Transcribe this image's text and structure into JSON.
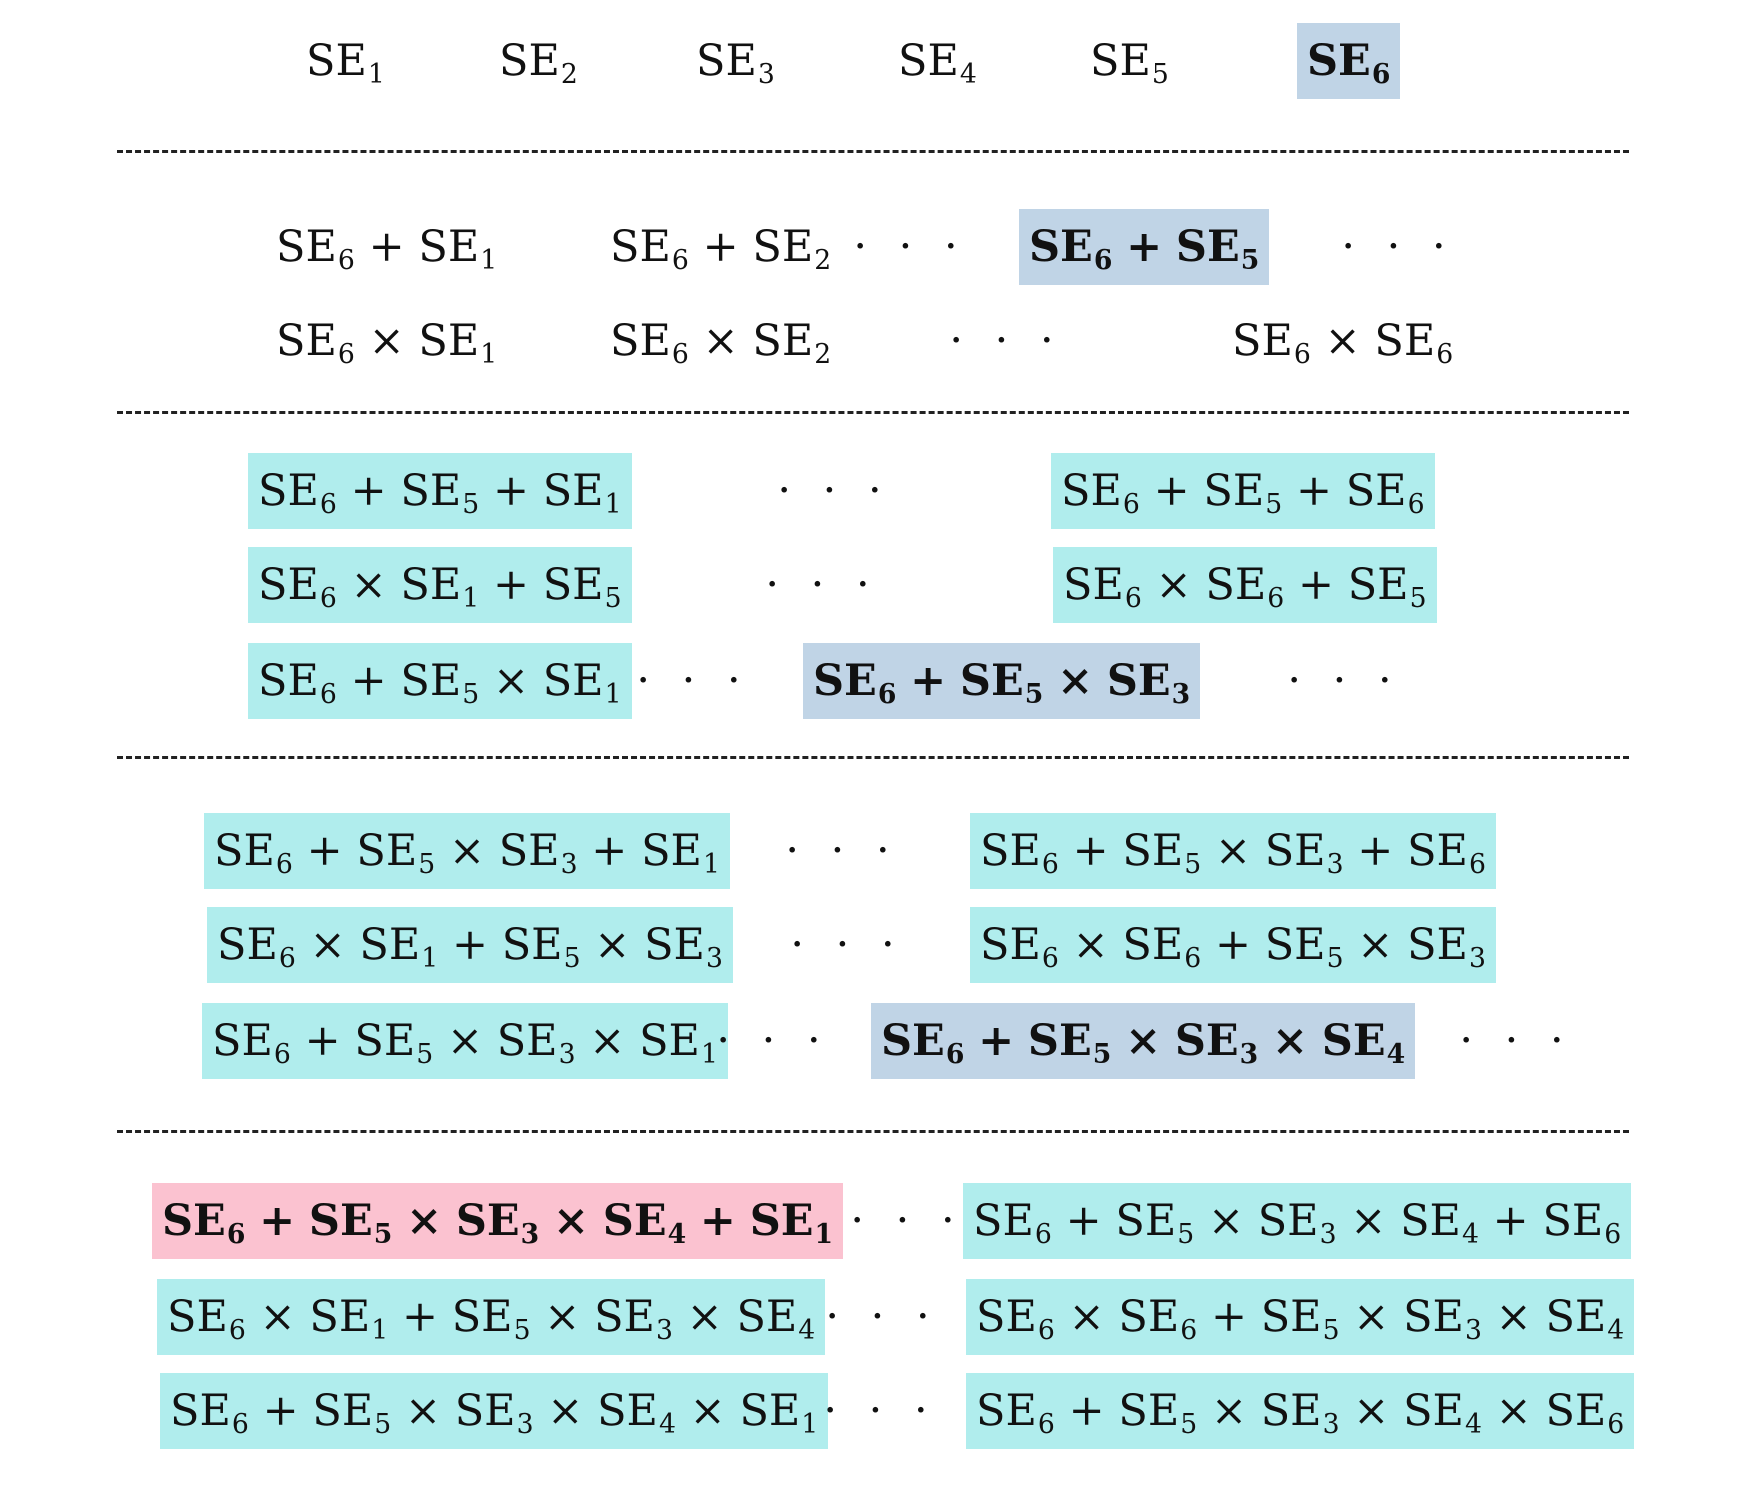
{
  "colors": {
    "highlight_blue": "#c0d4e6",
    "candidate_cyan": "#b0eded",
    "final_pink": "#fbc2d0"
  },
  "ellipsis": "· · ·",
  "stages": [
    {
      "rows": [
        {
          "items": [
            {
              "kind": "expr",
              "bold": false,
              "style": "plain",
              "terms": [
                {
                  "t": "SE",
                  "s": "1"
                }
              ]
            },
            {
              "kind": "expr",
              "bold": false,
              "style": "plain",
              "terms": [
                {
                  "t": "SE",
                  "s": "2"
                }
              ]
            },
            {
              "kind": "expr",
              "bold": false,
              "style": "plain",
              "terms": [
                {
                  "t": "SE",
                  "s": "3"
                }
              ]
            },
            {
              "kind": "expr",
              "bold": false,
              "style": "plain",
              "terms": [
                {
                  "t": "SE",
                  "s": "4"
                }
              ]
            },
            {
              "kind": "expr",
              "bold": false,
              "style": "plain",
              "terms": [
                {
                  "t": "SE",
                  "s": "5"
                }
              ]
            },
            {
              "kind": "expr",
              "bold": true,
              "style": "blue",
              "terms": [
                {
                  "t": "SE",
                  "s": "6"
                }
              ]
            }
          ]
        }
      ]
    },
    {
      "rows": [
        {
          "items": [
            {
              "kind": "expr",
              "bold": false,
              "style": "plain",
              "terms": [
                {
                  "t": "SE",
                  "s": "6"
                },
                {
                  "op": "+"
                },
                {
                  "t": "SE",
                  "s": "1"
                }
              ]
            },
            {
              "kind": "expr",
              "bold": false,
              "style": "plain",
              "terms": [
                {
                  "t": "SE",
                  "s": "6"
                },
                {
                  "op": "+"
                },
                {
                  "t": "SE",
                  "s": "2"
                }
              ]
            },
            {
              "kind": "dots"
            },
            {
              "kind": "expr",
              "bold": true,
              "style": "blue",
              "terms": [
                {
                  "t": "SE",
                  "s": "6"
                },
                {
                  "op": "+"
                },
                {
                  "t": "SE",
                  "s": "5"
                }
              ]
            },
            {
              "kind": "dots"
            }
          ]
        },
        {
          "items": [
            {
              "kind": "expr",
              "bold": false,
              "style": "plain",
              "terms": [
                {
                  "t": "SE",
                  "s": "6"
                },
                {
                  "op": "×"
                },
                {
                  "t": "SE",
                  "s": "1"
                }
              ]
            },
            {
              "kind": "expr",
              "bold": false,
              "style": "plain",
              "terms": [
                {
                  "t": "SE",
                  "s": "6"
                },
                {
                  "op": "×"
                },
                {
                  "t": "SE",
                  "s": "2"
                }
              ]
            },
            {
              "kind": "dots"
            },
            {
              "kind": "expr",
              "bold": false,
              "style": "plain",
              "terms": [
                {
                  "t": "SE",
                  "s": "6"
                },
                {
                  "op": "×"
                },
                {
                  "t": "SE",
                  "s": "6"
                }
              ]
            }
          ]
        }
      ]
    },
    {
      "rows": [
        {
          "items": [
            {
              "kind": "expr",
              "bold": false,
              "style": "cyan",
              "terms": [
                {
                  "t": "SE",
                  "s": "6"
                },
                {
                  "op": "+"
                },
                {
                  "t": "SE",
                  "s": "5"
                },
                {
                  "op": "+"
                },
                {
                  "t": "SE",
                  "s": "1"
                }
              ]
            },
            {
              "kind": "dots"
            },
            {
              "kind": "expr",
              "bold": false,
              "style": "cyan",
              "terms": [
                {
                  "t": "SE",
                  "s": "6"
                },
                {
                  "op": "+"
                },
                {
                  "t": "SE",
                  "s": "5"
                },
                {
                  "op": "+"
                },
                {
                  "t": "SE",
                  "s": "6"
                }
              ]
            }
          ]
        },
        {
          "items": [
            {
              "kind": "expr",
              "bold": false,
              "style": "cyan",
              "terms": [
                {
                  "t": "SE",
                  "s": "6"
                },
                {
                  "op": "×"
                },
                {
                  "t": "SE",
                  "s": "1"
                },
                {
                  "op": "+"
                },
                {
                  "t": "SE",
                  "s": "5"
                }
              ]
            },
            {
              "kind": "dots"
            },
            {
              "kind": "expr",
              "bold": false,
              "style": "cyan",
              "terms": [
                {
                  "t": "SE",
                  "s": "6"
                },
                {
                  "op": "×"
                },
                {
                  "t": "SE",
                  "s": "6"
                },
                {
                  "op": "+"
                },
                {
                  "t": "SE",
                  "s": "5"
                }
              ]
            }
          ]
        },
        {
          "items": [
            {
              "kind": "expr",
              "bold": false,
              "style": "cyan",
              "terms": [
                {
                  "t": "SE",
                  "s": "6"
                },
                {
                  "op": "+"
                },
                {
                  "t": "SE",
                  "s": "5"
                },
                {
                  "op": "×"
                },
                {
                  "t": "SE",
                  "s": "1"
                }
              ]
            },
            {
              "kind": "dots"
            },
            {
              "kind": "expr",
              "bold": true,
              "style": "blue",
              "terms": [
                {
                  "t": "SE",
                  "s": "6"
                },
                {
                  "op": "+"
                },
                {
                  "t": "SE",
                  "s": "5"
                },
                {
                  "op": "×"
                },
                {
                  "t": "SE",
                  "s": "3"
                }
              ]
            },
            {
              "kind": "dots"
            }
          ]
        }
      ]
    },
    {
      "rows": [
        {
          "items": [
            {
              "kind": "expr",
              "bold": false,
              "style": "cyan",
              "terms": [
                {
                  "t": "SE",
                  "s": "6"
                },
                {
                  "op": "+"
                },
                {
                  "t": "SE",
                  "s": "5"
                },
                {
                  "op": "×"
                },
                {
                  "t": "SE",
                  "s": "3"
                },
                {
                  "op": "+"
                },
                {
                  "t": "SE",
                  "s": "1"
                }
              ]
            },
            {
              "kind": "dots"
            },
            {
              "kind": "expr",
              "bold": false,
              "style": "cyan",
              "terms": [
                {
                  "t": "SE",
                  "s": "6"
                },
                {
                  "op": "+"
                },
                {
                  "t": "SE",
                  "s": "5"
                },
                {
                  "op": "×"
                },
                {
                  "t": "SE",
                  "s": "3"
                },
                {
                  "op": "+"
                },
                {
                  "t": "SE",
                  "s": "6"
                }
              ]
            }
          ]
        },
        {
          "items": [
            {
              "kind": "expr",
              "bold": false,
              "style": "cyan",
              "terms": [
                {
                  "t": "SE",
                  "s": "6"
                },
                {
                  "op": "×"
                },
                {
                  "t": "SE",
                  "s": "1"
                },
                {
                  "op": "+"
                },
                {
                  "t": "SE",
                  "s": "5"
                },
                {
                  "op": "×"
                },
                {
                  "t": "SE",
                  "s": "3"
                }
              ]
            },
            {
              "kind": "dots"
            },
            {
              "kind": "expr",
              "bold": false,
              "style": "cyan",
              "terms": [
                {
                  "t": "SE",
                  "s": "6"
                },
                {
                  "op": "×"
                },
                {
                  "t": "SE",
                  "s": "6"
                },
                {
                  "op": "+"
                },
                {
                  "t": "SE",
                  "s": "5"
                },
                {
                  "op": "×"
                },
                {
                  "t": "SE",
                  "s": "3"
                }
              ]
            }
          ]
        },
        {
          "items": [
            {
              "kind": "expr",
              "bold": false,
              "style": "cyan",
              "terms": [
                {
                  "t": "SE",
                  "s": "6"
                },
                {
                  "op": "+"
                },
                {
                  "t": "SE",
                  "s": "5"
                },
                {
                  "op": "×"
                },
                {
                  "t": "SE",
                  "s": "3"
                },
                {
                  "op": "×"
                },
                {
                  "t": "SE",
                  "s": "1"
                }
              ]
            },
            {
              "kind": "dots"
            },
            {
              "kind": "expr",
              "bold": true,
              "style": "blue",
              "terms": [
                {
                  "t": "SE",
                  "s": "6"
                },
                {
                  "op": "+"
                },
                {
                  "t": "SE",
                  "s": "5"
                },
                {
                  "op": "×"
                },
                {
                  "t": "SE",
                  "s": "3"
                },
                {
                  "op": "×"
                },
                {
                  "t": "SE",
                  "s": "4"
                }
              ]
            },
            {
              "kind": "dots"
            }
          ]
        }
      ]
    },
    {
      "rows": [
        {
          "items": [
            {
              "kind": "expr",
              "bold": true,
              "style": "pink",
              "terms": [
                {
                  "t": "SE",
                  "s": "6"
                },
                {
                  "op": "+"
                },
                {
                  "t": "SE",
                  "s": "5"
                },
                {
                  "op": "×"
                },
                {
                  "t": "SE",
                  "s": "3"
                },
                {
                  "op": "×"
                },
                {
                  "t": "SE",
                  "s": "4"
                },
                {
                  "op": "+"
                },
                {
                  "t": "SE",
                  "s": "1"
                }
              ]
            },
            {
              "kind": "dots"
            },
            {
              "kind": "expr",
              "bold": false,
              "style": "cyan",
              "terms": [
                {
                  "t": "SE",
                  "s": "6"
                },
                {
                  "op": "+"
                },
                {
                  "t": "SE",
                  "s": "5"
                },
                {
                  "op": "×"
                },
                {
                  "t": "SE",
                  "s": "3"
                },
                {
                  "op": "×"
                },
                {
                  "t": "SE",
                  "s": "4"
                },
                {
                  "op": "+"
                },
                {
                  "t": "SE",
                  "s": "6"
                }
              ]
            }
          ]
        },
        {
          "items": [
            {
              "kind": "expr",
              "bold": false,
              "style": "cyan",
              "terms": [
                {
                  "t": "SE",
                  "s": "6"
                },
                {
                  "op": "×"
                },
                {
                  "t": "SE",
                  "s": "1"
                },
                {
                  "op": "+"
                },
                {
                  "t": "SE",
                  "s": "5"
                },
                {
                  "op": "×"
                },
                {
                  "t": "SE",
                  "s": "3"
                },
                {
                  "op": "×"
                },
                {
                  "t": "SE",
                  "s": "4"
                }
              ]
            },
            {
              "kind": "dots"
            },
            {
              "kind": "expr",
              "bold": false,
              "style": "cyan",
              "terms": [
                {
                  "t": "SE",
                  "s": "6"
                },
                {
                  "op": "×"
                },
                {
                  "t": "SE",
                  "s": "6"
                },
                {
                  "op": "+"
                },
                {
                  "t": "SE",
                  "s": "5"
                },
                {
                  "op": "×"
                },
                {
                  "t": "SE",
                  "s": "3"
                },
                {
                  "op": "×"
                },
                {
                  "t": "SE",
                  "s": "4"
                }
              ]
            }
          ]
        },
        {
          "items": [
            {
              "kind": "expr",
              "bold": false,
              "style": "cyan",
              "terms": [
                {
                  "t": "SE",
                  "s": "6"
                },
                {
                  "op": "+"
                },
                {
                  "t": "SE",
                  "s": "5"
                },
                {
                  "op": "×"
                },
                {
                  "t": "SE",
                  "s": "3"
                },
                {
                  "op": "×"
                },
                {
                  "t": "SE",
                  "s": "4"
                },
                {
                  "op": "×"
                },
                {
                  "t": "SE",
                  "s": "1"
                }
              ]
            },
            {
              "kind": "dots"
            },
            {
              "kind": "expr",
              "bold": false,
              "style": "cyan",
              "terms": [
                {
                  "t": "SE",
                  "s": "6"
                },
                {
                  "op": "+"
                },
                {
                  "t": "SE",
                  "s": "5"
                },
                {
                  "op": "×"
                },
                {
                  "t": "SE",
                  "s": "3"
                },
                {
                  "op": "×"
                },
                {
                  "t": "SE",
                  "s": "4"
                },
                {
                  "op": "×"
                },
                {
                  "t": "SE",
                  "s": "6"
                }
              ]
            }
          ]
        }
      ]
    }
  ]
}
